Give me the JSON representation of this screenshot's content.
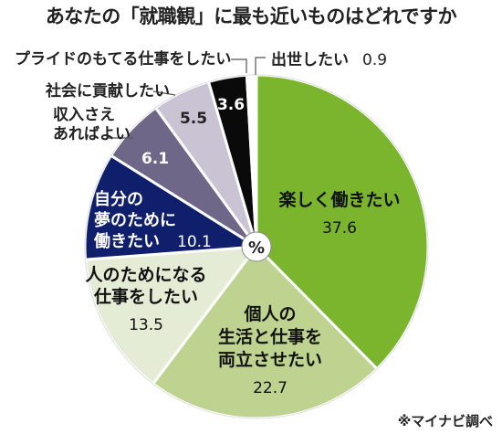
{
  "chart_data": {
    "type": "pie",
    "title": "あなたの「就職観」に最も近いものはどれですか",
    "center_label": "%",
    "source": "※マイナビ調べ",
    "slices": [
      {
        "label": [
          "楽しく働きたい"
        ],
        "value": 37.6,
        "color": "#7ab52d"
      },
      {
        "label": [
          "個人の",
          "生活と仕事を",
          "両立させたい"
        ],
        "value": 22.7,
        "color": "#bfd390"
      },
      {
        "label": [
          "人のためになる",
          "仕事をしたい"
        ],
        "value": 13.5,
        "color": "#e5ecd6"
      },
      {
        "label": [
          "自分の",
          "夢のために",
          "働きたい"
        ],
        "value": 10.1,
        "color": "#0f1f6b"
      },
      {
        "label": [
          "収入さえ",
          "あればよい"
        ],
        "value": 6.1,
        "color": "#6e6788"
      },
      {
        "label": [
          "社会に貢献したい"
        ],
        "value": 5.5,
        "color": "#c9c3d4"
      },
      {
        "label": [
          "プライドのもてる仕事をしたい"
        ],
        "value": 3.6,
        "color": "#0a0a0a"
      },
      {
        "label": [
          "出世したい"
        ],
        "value": 0.9,
        "color": "#ffffff"
      }
    ]
  }
}
